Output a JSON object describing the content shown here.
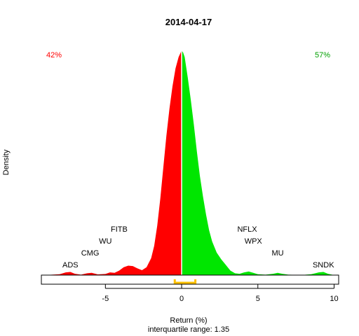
{
  "chart_data": {
    "type": "area",
    "title": "2014-04-17",
    "xlabel": "Return (%)",
    "ylabel": "Density",
    "subtitle": "interquartile range: 1.35",
    "xlim": [
      -9.2,
      10.3
    ],
    "ylim": [
      0,
      1
    ],
    "x_ticks": [
      -5,
      0,
      5,
      10
    ],
    "x_tick_labels": [
      "-5",
      "0",
      "5",
      "10"
    ],
    "split_at": 0,
    "interquartile_range": {
      "low": -0.45,
      "high": 0.9,
      "value": 1.35
    },
    "negative_share_label": "42%",
    "positive_share_label": "57%",
    "colors": {
      "negative": "#ff0000",
      "positive": "#00e600",
      "iqr": "#ffc000",
      "neg_label": "#ff0000",
      "pos_label": "#00a000"
    },
    "density": {
      "x": [
        -9.0,
        -8.0,
        -7.6,
        -7.3,
        -7.0,
        -6.6,
        -6.2,
        -5.9,
        -5.5,
        -5.0,
        -4.7,
        -4.4,
        -4.1,
        -3.8,
        -3.5,
        -3.2,
        -2.9,
        -2.6,
        -2.3,
        -2.0,
        -1.8,
        -1.6,
        -1.4,
        -1.2,
        -1.0,
        -0.8,
        -0.6,
        -0.4,
        -0.2,
        0.0,
        0.1,
        0.2,
        0.4,
        0.6,
        0.8,
        1.0,
        1.2,
        1.4,
        1.6,
        1.8,
        2.0,
        2.3,
        2.6,
        2.9,
        3.2,
        3.5,
        3.8,
        4.1,
        4.4,
        4.7,
        5.0,
        5.5,
        6.0,
        6.3,
        6.6,
        7.0,
        7.5,
        8.0,
        8.5,
        9.0,
        9.3,
        9.6,
        10.0
      ],
      "y": [
        0.0,
        0.004,
        0.012,
        0.014,
        0.006,
        0.002,
        0.008,
        0.01,
        0.003,
        0.005,
        0.012,
        0.01,
        0.02,
        0.035,
        0.042,
        0.04,
        0.03,
        0.022,
        0.035,
        0.075,
        0.13,
        0.22,
        0.34,
        0.48,
        0.62,
        0.74,
        0.84,
        0.92,
        0.97,
        1.0,
        0.99,
        0.97,
        0.88,
        0.78,
        0.67,
        0.55,
        0.44,
        0.35,
        0.27,
        0.2,
        0.15,
        0.1,
        0.07,
        0.045,
        0.02,
        0.008,
        0.006,
        0.012,
        0.016,
        0.01,
        0.004,
        0.002,
        0.006,
        0.01,
        0.006,
        0.002,
        0.001,
        0.001,
        0.004,
        0.012,
        0.014,
        0.006,
        0.0
      ]
    },
    "ticker_annotations": [
      {
        "label": "ADS",
        "x": -7.3
      },
      {
        "label": "CMG",
        "x": -6.0
      },
      {
        "label": "WU",
        "x": -5.0
      },
      {
        "label": "FITB",
        "x": -4.1
      },
      {
        "label": "NFLX",
        "x": 4.3
      },
      {
        "label": "WPX",
        "x": 4.7
      },
      {
        "label": "MU",
        "x": 6.3
      },
      {
        "label": "SNDK",
        "x": 9.3
      }
    ]
  }
}
